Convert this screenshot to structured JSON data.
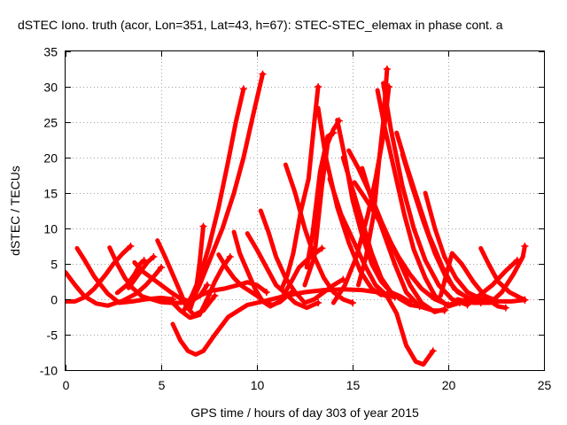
{
  "chart_data": {
    "type": "scatter",
    "title": "dSTEC Iono. truth (acor, Lon=351, Lat=43, h=67): STEC-STEC_elemax in phase cont. a",
    "xlabel": "GPS time / hours of day 303 of year 2015",
    "ylabel": "dSTEC  / TECUs",
    "xlim": [
      0,
      25
    ],
    "ylim": [
      -10,
      35
    ],
    "xticks": [
      0,
      5,
      10,
      15,
      20,
      25
    ],
    "yticks": [
      -10,
      -5,
      0,
      5,
      10,
      15,
      20,
      25,
      30,
      35
    ],
    "grid": true,
    "series_color": "#ff0000",
    "marker": "plus",
    "tracks": [
      [
        [
          0.0,
          3.8
        ],
        [
          0.5,
          2.0
        ],
        [
          1.0,
          0.4
        ],
        [
          1.6,
          -0.6
        ],
        [
          2.2,
          -0.9
        ],
        [
          3.0,
          -0.2
        ],
        [
          3.7,
          0.8
        ],
        [
          4.2,
          2.0
        ],
        [
          4.7,
          3.5
        ],
        [
          5.0,
          4.5
        ]
      ],
      [
        [
          0.0,
          -0.3
        ],
        [
          0.5,
          -0.3
        ],
        [
          1.0,
          0.3
        ],
        [
          1.5,
          1.5
        ],
        [
          2.1,
          3.5
        ],
        [
          2.5,
          5.0
        ],
        [
          3.0,
          6.5
        ],
        [
          3.4,
          7.5
        ]
      ],
      [
        [
          0.6,
          7.2
        ],
        [
          1.0,
          5.5
        ],
        [
          1.5,
          3.2
        ],
        [
          2.2,
          0.8
        ],
        [
          2.8,
          -0.5
        ],
        [
          3.5,
          -0.3
        ],
        [
          4.2,
          0.0
        ],
        [
          5.0,
          0.2
        ],
        [
          5.6,
          0.0
        ]
      ],
      [
        [
          2.3,
          7.3
        ],
        [
          2.7,
          5.0
        ],
        [
          3.1,
          3.0
        ],
        [
          3.5,
          1.6
        ],
        [
          4.0,
          0.4
        ],
        [
          4.5,
          0.0
        ],
        [
          5.0,
          -0.4
        ],
        [
          5.5,
          -0.5
        ],
        [
          6.0,
          -0.5
        ],
        [
          6.6,
          -0.3
        ]
      ],
      [
        [
          3.3,
          1.6
        ],
        [
          3.8,
          3.5
        ],
        [
          4.3,
          5.3
        ],
        [
          4.6,
          6.0
        ]
      ],
      [
        [
          2.7,
          0.9
        ],
        [
          3.2,
          2.0
        ],
        [
          3.6,
          3.5
        ],
        [
          3.9,
          5.0
        ],
        [
          4.1,
          5.5
        ]
      ],
      [
        [
          3.6,
          5.2
        ],
        [
          4.0,
          4.0
        ],
        [
          4.5,
          3.0
        ],
        [
          5.0,
          2.0
        ],
        [
          5.5,
          1.0
        ],
        [
          6.0,
          0.1
        ],
        [
          6.5,
          -0.3
        ],
        [
          7.0,
          0.4
        ],
        [
          7.4,
          2.0
        ]
      ],
      [
        [
          4.8,
          8.3
        ],
        [
          5.2,
          6.0
        ],
        [
          5.6,
          3.5
        ],
        [
          6.0,
          1.0
        ],
        [
          6.3,
          -1.0
        ],
        [
          6.7,
          -2.2
        ],
        [
          7.2,
          -1.6
        ],
        [
          7.8,
          0.5
        ]
      ],
      [
        [
          5.6,
          -0.5
        ],
        [
          6.0,
          -1.6
        ],
        [
          6.5,
          -2.6
        ],
        [
          7.0,
          -2.2
        ],
        [
          7.4,
          0.0
        ],
        [
          7.8,
          2.5
        ],
        [
          8.2,
          4.5
        ],
        [
          8.6,
          6.0
        ]
      ],
      [
        [
          5.6,
          -3.5
        ],
        [
          6.0,
          -5.8
        ],
        [
          6.4,
          -7.3
        ],
        [
          6.8,
          -7.8
        ],
        [
          7.2,
          -7.3
        ],
        [
          7.8,
          -5.0
        ],
        [
          8.5,
          -2.5
        ],
        [
          9.5,
          -0.8
        ],
        [
          10.5,
          -0.2
        ],
        [
          11.5,
          0.5
        ],
        [
          12.5,
          1.0
        ],
        [
          13.5,
          1.3
        ],
        [
          14.5,
          1.4
        ],
        [
          15.5,
          1.3
        ],
        [
          16.3,
          1.0
        ],
        [
          16.8,
          0.4
        ],
        [
          17.3,
          -2.0
        ],
        [
          17.8,
          -6.5
        ],
        [
          18.3,
          -8.8
        ],
        [
          18.7,
          -9.2
        ],
        [
          19.2,
          -7.3
        ]
      ],
      [
        [
          6.5,
          -1.5
        ],
        [
          6.8,
          1.0
        ],
        [
          7.0,
          5.0
        ],
        [
          7.2,
          10.3
        ]
      ],
      [
        [
          6.2,
          -1.5
        ],
        [
          6.6,
          0.5
        ],
        [
          7.0,
          3.0
        ],
        [
          7.5,
          7.5
        ],
        [
          8.0,
          13.0
        ],
        [
          8.5,
          19.5
        ],
        [
          8.9,
          25.0
        ],
        [
          9.3,
          29.7
        ]
      ],
      [
        [
          6.5,
          -1.0
        ],
        [
          7.0,
          2.0
        ],
        [
          7.6,
          6.0
        ],
        [
          8.2,
          10.0
        ],
        [
          8.8,
          15.0
        ],
        [
          9.3,
          20.0
        ],
        [
          9.8,
          26.0
        ],
        [
          10.3,
          31.8
        ]
      ],
      [
        [
          7.0,
          0.5
        ],
        [
          7.6,
          1.2
        ],
        [
          8.3,
          1.5
        ],
        [
          9.0,
          2.0
        ],
        [
          9.5,
          2.4
        ],
        [
          10.0,
          2.0
        ],
        [
          10.5,
          1.0
        ]
      ],
      [
        [
          8.0,
          6.3
        ],
        [
          8.4,
          4.5
        ],
        [
          8.8,
          3.0
        ],
        [
          9.2,
          1.9
        ],
        [
          9.6,
          1.2
        ],
        [
          10.0,
          0.5
        ],
        [
          10.4,
          -0.4
        ],
        [
          10.8,
          -0.8
        ],
        [
          11.2,
          -0.4
        ],
        [
          11.8,
          1.0
        ]
      ],
      [
        [
          8.8,
          9.5
        ],
        [
          9.1,
          6.5
        ],
        [
          9.5,
          4.0
        ],
        [
          9.9,
          1.5
        ],
        [
          10.3,
          -0.3
        ],
        [
          10.7,
          -1.0
        ],
        [
          11.2,
          -0.3
        ],
        [
          11.8,
          2.5
        ],
        [
          12.2,
          4.5
        ],
        [
          12.8,
          6.0
        ],
        [
          13.4,
          7.2
        ]
      ],
      [
        [
          9.5,
          9.3
        ],
        [
          10.0,
          7.0
        ],
        [
          10.5,
          4.5
        ],
        [
          11.0,
          2.0
        ],
        [
          11.5,
          0.8
        ],
        [
          12.0,
          -0.5
        ],
        [
          12.6,
          -1.2
        ],
        [
          13.2,
          -0.5
        ]
      ],
      [
        [
          10.2,
          12.5
        ],
        [
          10.6,
          9.5
        ],
        [
          11.0,
          6.0
        ],
        [
          11.5,
          3.0
        ],
        [
          12.0,
          1.0
        ],
        [
          12.5,
          -0.5
        ],
        [
          13.0,
          0.0
        ],
        [
          13.5,
          1.0
        ],
        [
          14.0,
          2.0
        ],
        [
          14.5,
          2.8
        ]
      ],
      [
        [
          11.5,
          19.0
        ],
        [
          12.0,
          15.0
        ],
        [
          12.5,
          10.0
        ],
        [
          13.0,
          6.0
        ],
        [
          13.5,
          3.0
        ],
        [
          14.0,
          1.0
        ],
        [
          14.5,
          0.0
        ],
        [
          15.0,
          -0.5
        ]
      ],
      [
        [
          11.3,
          1.5
        ],
        [
          11.6,
          3.5
        ],
        [
          11.9,
          6.5
        ],
        [
          12.3,
          12.5
        ],
        [
          12.7,
          17.0
        ],
        [
          13.0,
          25.0
        ],
        [
          13.2,
          30.0
        ]
      ],
      [
        [
          12.5,
          2.0
        ],
        [
          13.0,
          6.0
        ],
        [
          13.4,
          16.0
        ],
        [
          13.7,
          22.0
        ],
        [
          14.0,
          24.0
        ],
        [
          14.3,
          25.2
        ]
      ],
      [
        [
          12.6,
          4.5
        ],
        [
          12.9,
          9.0
        ],
        [
          13.3,
          18.0
        ],
        [
          13.7,
          23.0
        ],
        [
          14.0,
          23.5
        ]
      ],
      [
        [
          13.2,
          27.0
        ],
        [
          13.6,
          20.0
        ],
        [
          14.2,
          13.0
        ],
        [
          14.8,
          8.0
        ],
        [
          15.4,
          4.0
        ],
        [
          16.0,
          1.5
        ],
        [
          16.5,
          0.6
        ],
        [
          17.0,
          1.0
        ]
      ],
      [
        [
          13.8,
          17.0
        ],
        [
          14.4,
          12.0
        ],
        [
          15.0,
          8.5
        ],
        [
          15.6,
          5.0
        ],
        [
          16.2,
          2.0
        ],
        [
          16.8,
          0.5
        ],
        [
          17.2,
          0.3
        ]
      ],
      [
        [
          14.2,
          25.3
        ],
        [
          14.6,
          20.0
        ],
        [
          15.0,
          14.0
        ],
        [
          15.5,
          9.0
        ],
        [
          16.0,
          5.0
        ],
        [
          16.5,
          2.5
        ],
        [
          17.0,
          1.0
        ],
        [
          17.5,
          0.4
        ],
        [
          18.0,
          -0.4
        ]
      ],
      [
        [
          14.5,
          20.0
        ],
        [
          15.0,
          15.5
        ],
        [
          15.5,
          11.0
        ],
        [
          16.0,
          6.5
        ],
        [
          16.5,
          3.0
        ],
        [
          17.0,
          1.0
        ],
        [
          17.5,
          0.0
        ],
        [
          18.0,
          -0.8
        ],
        [
          18.5,
          -1.0
        ]
      ],
      [
        [
          14.8,
          21.0
        ],
        [
          15.3,
          18.5
        ],
        [
          15.9,
          15.0
        ],
        [
          16.5,
          11.0
        ],
        [
          17.0,
          8.0
        ],
        [
          17.5,
          5.0
        ],
        [
          18.0,
          2.0
        ],
        [
          18.6,
          -0.5
        ],
        [
          19.3,
          -1.8
        ],
        [
          19.8,
          -1.4
        ]
      ],
      [
        [
          15.1,
          16.5
        ],
        [
          15.6,
          14.5
        ],
        [
          16.2,
          12.0
        ],
        [
          16.8,
          9.0
        ],
        [
          17.4,
          6.0
        ],
        [
          18.0,
          3.5
        ],
        [
          18.6,
          1.5
        ],
        [
          19.3,
          0.0
        ],
        [
          20.0,
          -0.8
        ]
      ],
      [
        [
          15.5,
          18.5
        ],
        [
          16.0,
          14.0
        ],
        [
          16.6,
          9.5
        ],
        [
          17.2,
          5.0
        ],
        [
          17.8,
          1.0
        ],
        [
          18.5,
          -1.0
        ],
        [
          19.2,
          -1.6
        ],
        [
          19.8,
          -1.6
        ]
      ],
      [
        [
          14.0,
          -0.5
        ],
        [
          14.6,
          2.0
        ],
        [
          15.2,
          6.0
        ],
        [
          15.8,
          12.0
        ],
        [
          16.2,
          17.0
        ],
        [
          16.6,
          23.0
        ],
        [
          16.9,
          30.0
        ]
      ],
      [
        [
          15.3,
          2.0
        ],
        [
          15.7,
          6.0
        ],
        [
          16.1,
          12.0
        ],
        [
          16.4,
          20.0
        ],
        [
          16.6,
          25.0
        ],
        [
          16.8,
          32.5
        ]
      ],
      [
        [
          16.3,
          29.5
        ],
        [
          16.7,
          24.0
        ],
        [
          17.2,
          18.0
        ],
        [
          17.7,
          12.0
        ],
        [
          18.2,
          7.0
        ],
        [
          18.8,
          3.0
        ],
        [
          19.3,
          0.5
        ],
        [
          20.0,
          -1.0
        ],
        [
          20.6,
          -0.5
        ]
      ],
      [
        [
          16.6,
          30.5
        ],
        [
          17.0,
          24.0
        ],
        [
          17.6,
          16.0
        ],
        [
          18.2,
          10.0
        ],
        [
          18.8,
          5.5
        ],
        [
          19.5,
          2.0
        ],
        [
          20.2,
          0.0
        ],
        [
          21.0,
          -0.8
        ]
      ],
      [
        [
          17.3,
          23.5
        ],
        [
          17.8,
          19.0
        ],
        [
          18.4,
          14.0
        ],
        [
          19.0,
          9.0
        ],
        [
          19.7,
          4.5
        ],
        [
          20.3,
          1.5
        ],
        [
          21.0,
          0.2
        ],
        [
          21.7,
          -0.5
        ]
      ],
      [
        [
          17.6,
          20.5
        ],
        [
          18.1,
          16.0
        ],
        [
          18.7,
          11.0
        ],
        [
          19.3,
          6.5
        ],
        [
          19.9,
          3.0
        ],
        [
          20.5,
          1.0
        ],
        [
          21.2,
          0.0
        ],
        [
          21.8,
          -0.3
        ]
      ],
      [
        [
          18.8,
          15.0
        ],
        [
          19.3,
          10.0
        ],
        [
          19.8,
          6.0
        ],
        [
          20.4,
          3.0
        ],
        [
          21.0,
          1.0
        ],
        [
          21.6,
          0.2
        ],
        [
          22.2,
          -0.3
        ],
        [
          22.6,
          -1.0
        ],
        [
          23.0,
          -1.2
        ]
      ],
      [
        [
          19.6,
          0.5
        ],
        [
          19.9,
          3.5
        ],
        [
          20.2,
          6.5
        ],
        [
          20.7,
          5.0
        ],
        [
          21.3,
          2.5
        ],
        [
          21.9,
          0.5
        ],
        [
          22.6,
          -0.3
        ],
        [
          23.3,
          -0.3
        ],
        [
          24.0,
          -0.1
        ]
      ],
      [
        [
          21.7,
          7.2
        ],
        [
          22.1,
          5.0
        ],
        [
          22.6,
          2.5
        ],
        [
          23.2,
          1.0
        ],
        [
          23.7,
          0.3
        ],
        [
          24.0,
          -0.1
        ]
      ],
      [
        [
          20.5,
          0.0
        ],
        [
          21.3,
          -0.5
        ],
        [
          22.2,
          -0.5
        ],
        [
          22.8,
          1.0
        ],
        [
          23.4,
          3.5
        ],
        [
          23.9,
          6.0
        ],
        [
          24.0,
          7.5
        ]
      ],
      [
        [
          20.0,
          -0.8
        ],
        [
          20.8,
          -0.2
        ],
        [
          21.6,
          0.5
        ],
        [
          22.3,
          2.0
        ],
        [
          23.0,
          4.0
        ],
        [
          23.6,
          5.5
        ]
      ]
    ]
  }
}
